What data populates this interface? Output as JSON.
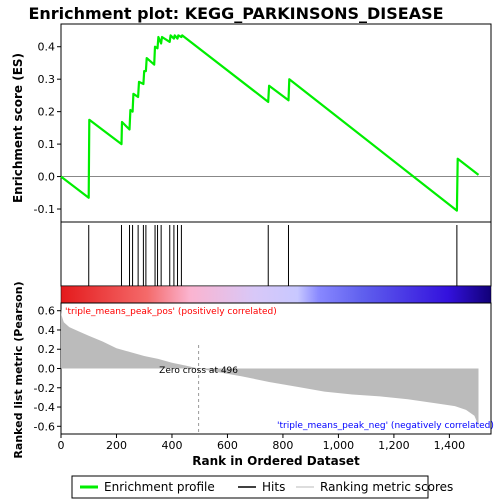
{
  "chart_data": {
    "type": "line",
    "title": "Enrichment plot: KEGG_PARKINSONS_DISEASE",
    "xlabel": "Rank in Ordered Dataset",
    "xlim": [
      0,
      1550
    ],
    "xticks": [
      0,
      200,
      400,
      600,
      800,
      1000,
      1200,
      1400
    ],
    "xtick_labels": [
      "0",
      "200",
      "400",
      "600",
      "800",
      "1,000",
      "1,200",
      "1,400"
    ],
    "panels": {
      "es": {
        "ylabel": "Enrichment score (ES)",
        "ylim": [
          -0.14,
          0.47
        ],
        "yticks": [
          -0.1,
          0.0,
          0.1,
          0.2,
          0.3,
          0.4
        ],
        "ytick_labels": [
          "-0.1",
          "0.0",
          "0.1",
          "0.2",
          "0.3",
          "0.4"
        ]
      },
      "metric": {
        "ylabel": "Ranked list metric (Pearson)",
        "ylim": [
          -0.68,
          0.68
        ],
        "yticks": [
          -0.6,
          -0.4,
          -0.2,
          0.0,
          0.2,
          0.4,
          0.6
        ],
        "ytick_labels": [
          "-0.6",
          "-0.4",
          "-0.2",
          "0.0",
          "0.2",
          "0.4",
          "0.6"
        ]
      }
    },
    "series": [
      {
        "name": "Enrichment profile",
        "color": "#00ee00",
        "x": [
          0,
          100,
          102,
          218,
          220,
          247,
          250,
          258,
          261,
          278,
          281,
          297,
          300,
          306,
          309,
          336,
          339,
          348,
          351,
          361,
          364,
          392,
          395,
          407,
          410,
          420,
          423,
          434,
          437,
          747,
          750,
          820,
          823,
          1427,
          1430,
          1505
        ],
        "y": [
          0.0,
          -0.065,
          0.175,
          0.1,
          0.168,
          0.145,
          0.205,
          0.2,
          0.255,
          0.245,
          0.292,
          0.285,
          0.325,
          0.325,
          0.365,
          0.345,
          0.4,
          0.395,
          0.43,
          0.41,
          0.43,
          0.415,
          0.435,
          0.425,
          0.435,
          0.425,
          0.435,
          0.43,
          0.435,
          0.23,
          0.28,
          0.235,
          0.3,
          -0.105,
          0.055,
          0.005
        ]
      }
    ],
    "hits": [
      100,
      218,
      247,
      258,
      278,
      297,
      306,
      339,
      348,
      361,
      392,
      407,
      420,
      434,
      747,
      820,
      1427
    ],
    "ranking_metric": {
      "name": "Ranking metric scores",
      "x": [
        0,
        2,
        10,
        30,
        60,
        100,
        150,
        200,
        250,
        300,
        350,
        400,
        450,
        496,
        550,
        650,
        750,
        850,
        950,
        1050,
        1150,
        1250,
        1350,
        1420,
        1460,
        1490,
        1503,
        1505
      ],
      "y": [
        0.62,
        0.55,
        0.48,
        0.43,
        0.39,
        0.34,
        0.28,
        0.21,
        0.17,
        0.13,
        0.1,
        0.06,
        0.03,
        0.0,
        -0.03,
        -0.08,
        -0.14,
        -0.19,
        -0.24,
        -0.27,
        -0.29,
        -0.32,
        -0.36,
        -0.39,
        -0.43,
        -0.49,
        -0.58,
        -0.63
      ]
    },
    "zero_cross_label": "Zero cross at 496",
    "pos_label": "'triple_means_peak_pos' (positively correlated)",
    "neg_label": "'triple_means_peak_neg' (negatively correlated)",
    "legend": [
      {
        "label": "Enrichment profile",
        "color": "#00ee00"
      },
      {
        "label": "Hits",
        "color": "#000000"
      },
      {
        "label": "Ranking metric scores",
        "color": "#bbbbbb"
      }
    ],
    "colors": {
      "profile": "#00ee00",
      "metric_fill": "#bbbbbb",
      "pos_label": "#ff0000",
      "neg_label": "#0000ff",
      "gradient": [
        "#e41a1c",
        "#f46a6a",
        "#fbb4d0",
        "#d8c8f8",
        "#a0a0ff",
        "#5555ee",
        "#2200cc",
        "#000066"
      ]
    }
  }
}
